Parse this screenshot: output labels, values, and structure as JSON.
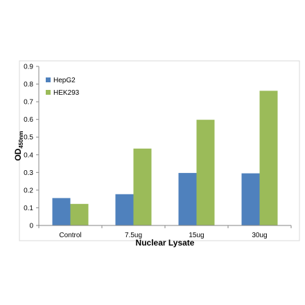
{
  "chart_data": {
    "type": "bar",
    "title": "",
    "xlabel": "Nuclear Lysate",
    "ylabel_main": "OD",
    "ylabel_sub": "450nm",
    "categories": [
      "Control",
      "7.5ug",
      "15ug",
      "30ug"
    ],
    "ylim": [
      0,
      0.9
    ],
    "yticks": [
      "0",
      "0.1",
      "0.2",
      "0.3",
      "0.4",
      "0.5",
      "0.6",
      "0.7",
      "0.8",
      "0.9"
    ],
    "grid": false,
    "legend_position": "top-left",
    "series": [
      {
        "name": "HepG2",
        "color": "#4f81bd",
        "values": [
          0.155,
          0.177,
          0.297,
          0.295
        ]
      },
      {
        "name": "HEK293",
        "color": "#9bbb59",
        "values": [
          0.122,
          0.435,
          0.598,
          0.762
        ]
      }
    ]
  }
}
